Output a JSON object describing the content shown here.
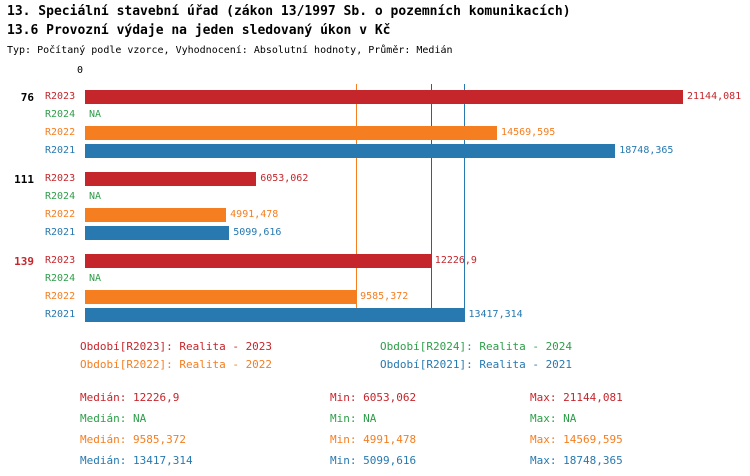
{
  "header": {
    "title": "13. Speciální stavební úřad (zákon 13/1997 Sb. o pozemních komunikacích)",
    "subtitle": "13.6 Provozní výdaje na jeden sledovaný úkon v Kč",
    "meta": "Typ: Počítaný podle vzorce, Vyhodnocení: Absolutní hodnoty, Průměr: Medián"
  },
  "chart_data": {
    "type": "bar",
    "orientation": "horizontal",
    "value_axis": {
      "zero_label": "0",
      "max": 21144.081
    },
    "series": [
      {
        "name": "R2023",
        "color": "#c5262c"
      },
      {
        "name": "R2024",
        "color": "#2e9e4a"
      },
      {
        "name": "R2022",
        "color": "#f57e20"
      },
      {
        "name": "R2021",
        "color": "#2779b0"
      }
    ],
    "groups": [
      {
        "id": "76",
        "id_color": "#000000",
        "values": {
          "R2023": 21144.081,
          "R2024": null,
          "R2022": 14569.595,
          "R2021": 18748.365
        },
        "labels": {
          "R2023": "21144,081",
          "R2024": "NA",
          "R2022": "14569,595",
          "R2021": "18748,365"
        }
      },
      {
        "id": "111",
        "id_color": "#000000",
        "values": {
          "R2023": 6053.062,
          "R2024": null,
          "R2022": 4991.478,
          "R2021": 5099.616
        },
        "labels": {
          "R2023": "6053,062",
          "R2024": "NA",
          "R2022": "4991,478",
          "R2021": "5099,616"
        }
      },
      {
        "id": "139",
        "id_color": "#c5262c",
        "values": {
          "R2023": 12226.9,
          "R2024": null,
          "R2022": 9585.372,
          "R2021": 13417.314
        },
        "labels": {
          "R2023": "12226,9",
          "R2024": "NA",
          "R2022": "9585,372",
          "R2021": "13417,314"
        }
      }
    ],
    "median_lines": [
      {
        "series": "R2023",
        "value": 12226.9,
        "color": "#c5262c"
      },
      {
        "series": "R2022",
        "value": 9585.372,
        "color": "#f57e20"
      },
      {
        "series": "R2021",
        "value": 13417.314,
        "color": "#2779b0"
      }
    ]
  },
  "legend": [
    {
      "label": "Období[R2023]: Realita - 2023",
      "color": "#c5262c"
    },
    {
      "label": "Období[R2024]: Realita - 2024",
      "color": "#2e9e4a"
    },
    {
      "label": "Období[R2022]: Realita - 2022",
      "color": "#f57e20"
    },
    {
      "label": "Období[R2021]: Realita - 2021",
      "color": "#2779b0"
    }
  ],
  "stats": [
    {
      "median": "Medián: 12226,9",
      "min": "Min: 6053,062",
      "max": "Max: 21144,081",
      "color": "#c5262c"
    },
    {
      "median": "Medián: NA",
      "min": "Min: NA",
      "max": "Max: NA",
      "color": "#2e9e4a"
    },
    {
      "median": "Medián: 9585,372",
      "min": "Min: 4991,478",
      "max": "Max: 14569,595",
      "color": "#f57e20"
    },
    {
      "median": "Medián: 13417,314",
      "min": "Min: 5099,616",
      "max": "Max: 18748,365",
      "color": "#2779b0"
    }
  ]
}
